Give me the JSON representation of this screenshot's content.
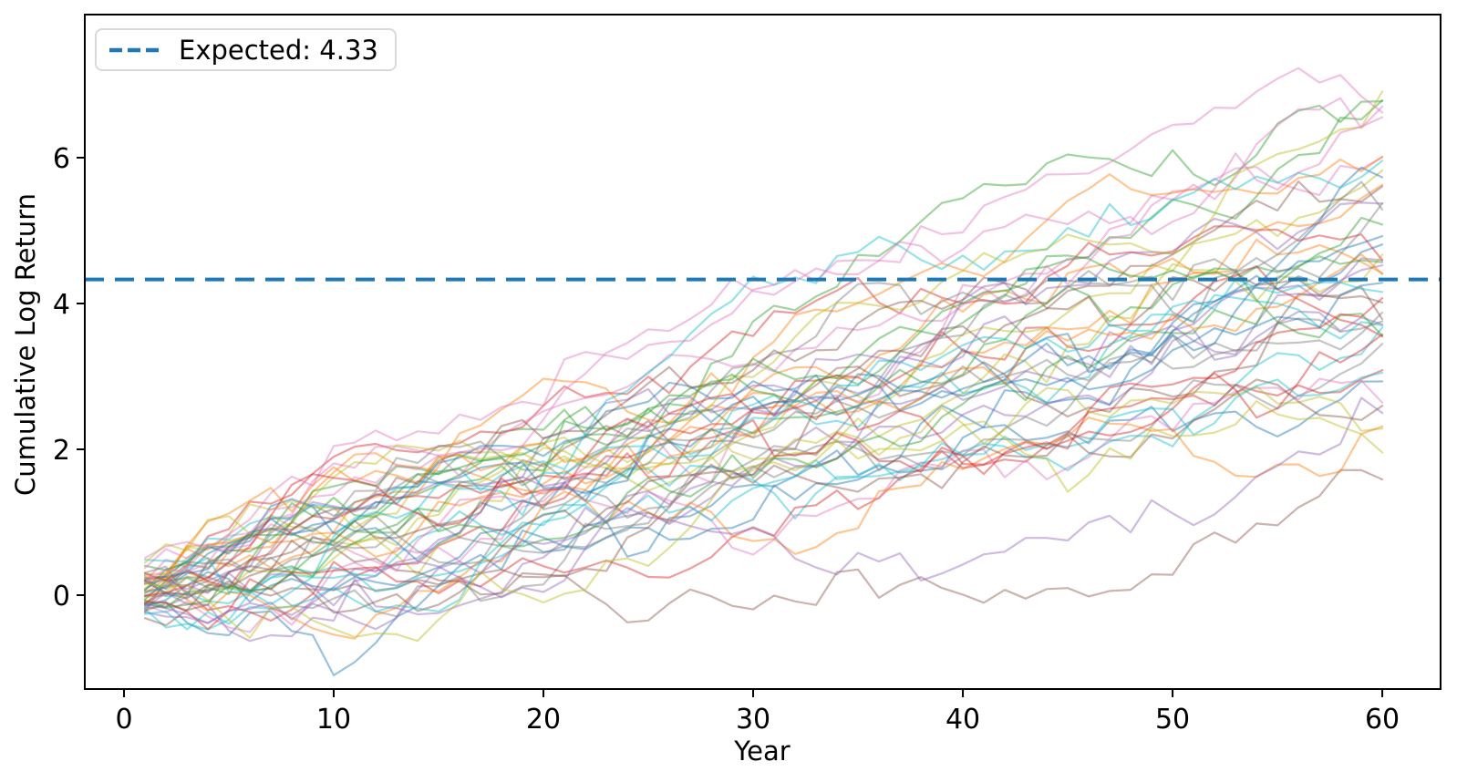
{
  "figure": {
    "background_color": "#ffffff",
    "spine_color": "#000000",
    "tick_color": "#000000",
    "text_color": "#000000"
  },
  "chart_data": {
    "type": "line",
    "title": "",
    "xlabel": "Year",
    "ylabel": "Cumulative Log Return",
    "x_ticks": [
      0,
      10,
      20,
      30,
      40,
      50,
      60
    ],
    "y_ticks": [
      0,
      2,
      4,
      6
    ],
    "xlim": [
      -1.87,
      62.78
    ],
    "ylim": [
      -1.2875,
      7.9625
    ],
    "grid": false,
    "legend": {
      "label": "Expected: 4.33",
      "position": "upper left",
      "line_color": "#1f77b4",
      "line_style": "dashed"
    },
    "expected_line": {
      "value": 4.33,
      "color": "#1f77b4",
      "style": "dashed",
      "dash_pattern": [
        21,
        12
      ],
      "linewidth": 4
    },
    "simulation": {
      "description": "Monte Carlo cumulative log return paths, years 1-60",
      "n_paths": 50,
      "x_start": 1,
      "x_end": 60,
      "drift_per_year": 0.07217,
      "volatility_per_year": 0.19,
      "start_std": 0.2,
      "seed": 42,
      "alpha": 0.45,
      "linewidth": 2.2,
      "colors": [
        "#1f77b4",
        "#ff7f0e",
        "#2ca02c",
        "#d62728",
        "#9467bd",
        "#8c564b",
        "#e377c2",
        "#7f7f7f",
        "#bcbd22",
        "#17becf"
      ]
    }
  }
}
